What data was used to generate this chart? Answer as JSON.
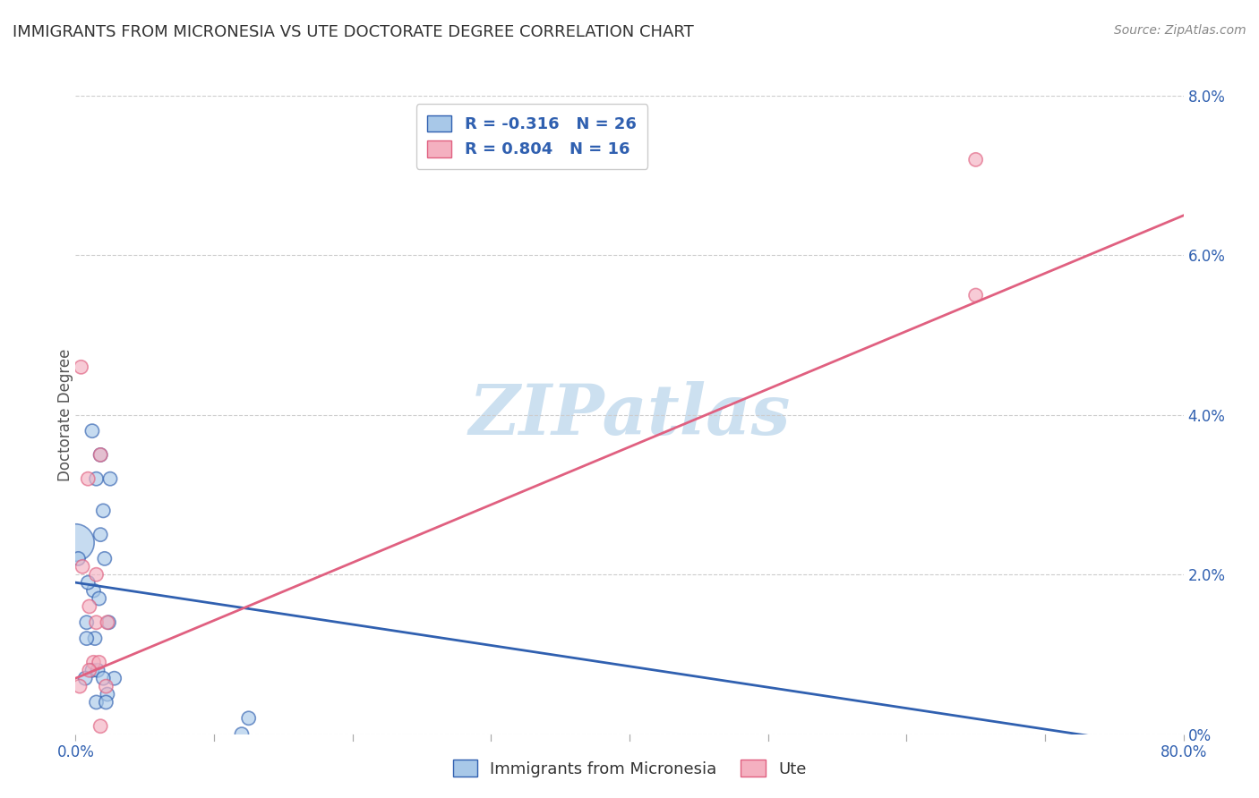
{
  "title": "IMMIGRANTS FROM MICRONESIA VS UTE DOCTORATE DEGREE CORRELATION CHART",
  "source": "Source: ZipAtlas.com",
  "ylabel_label": "Doctorate Degree",
  "legend_blue_r": "R = -0.316",
  "legend_blue_n": "N = 26",
  "legend_pink_r": "R = 0.804",
  "legend_pink_n": "N = 16",
  "legend_label_blue": "Immigrants from Micronesia",
  "legend_label_pink": "Ute",
  "blue_scatter_x": [
    1.5,
    1.8,
    1.2,
    2.0,
    2.5,
    1.8,
    1.3,
    0.8,
    0.0,
    0.9,
    1.7,
    2.1,
    2.4,
    2.8,
    1.4,
    0.2,
    0.8,
    1.2,
    1.6,
    0.7,
    2.0,
    2.3,
    1.5,
    12.0,
    12.5,
    2.2
  ],
  "blue_scatter_y": [
    3.2,
    3.5,
    3.8,
    2.8,
    3.2,
    2.5,
    1.8,
    1.4,
    2.4,
    1.9,
    1.7,
    2.2,
    1.4,
    0.7,
    1.2,
    2.2,
    1.2,
    0.8,
    0.8,
    0.7,
    0.7,
    0.5,
    0.4,
    0.0,
    0.2,
    0.4
  ],
  "blue_scatter_s": [
    120,
    120,
    120,
    120,
    120,
    120,
    120,
    120,
    900,
    120,
    120,
    120,
    120,
    120,
    120,
    120,
    120,
    120,
    120,
    120,
    120,
    120,
    120,
    120,
    120,
    120
  ],
  "pink_scatter_x": [
    0.4,
    0.9,
    1.8,
    0.5,
    1.5,
    1.5,
    2.3,
    2.2,
    0.3,
    1.3,
    1.7,
    65.0,
    65.0,
    1.0,
    1.0,
    1.8
  ],
  "pink_scatter_y": [
    4.6,
    3.2,
    3.5,
    2.1,
    1.4,
    2.0,
    1.4,
    0.6,
    0.6,
    0.9,
    0.9,
    7.2,
    5.5,
    1.6,
    0.8,
    0.1
  ],
  "pink_scatter_s": [
    120,
    120,
    120,
    120,
    120,
    120,
    120,
    120,
    120,
    120,
    120,
    120,
    120,
    120,
    120,
    120
  ],
  "blue_line_x": [
    0.0,
    80.0
  ],
  "blue_line_y": [
    1.9,
    -0.2
  ],
  "pink_line_x": [
    0.0,
    80.0
  ],
  "pink_line_y": [
    0.7,
    6.5
  ],
  "blue_color": "#a8c8e8",
  "pink_color": "#f4b0c0",
  "blue_line_color": "#3060b0",
  "pink_line_color": "#e06080",
  "watermark": "ZIPatlas",
  "watermark_color": "#cce0f0",
  "background_color": "#ffffff",
  "xlim": [
    0.0,
    80.0
  ],
  "ylim": [
    0.0,
    8.0
  ],
  "x_tick_positions": [
    0.0,
    10.0,
    20.0,
    30.0,
    40.0,
    50.0,
    60.0,
    70.0,
    80.0
  ],
  "x_tick_labels": [
    "0.0%",
    "",
    "",
    "",
    "",
    "",
    "",
    "",
    "80.0%"
  ],
  "y_tick_positions": [
    0.0,
    2.0,
    4.0,
    6.0,
    8.0
  ],
  "y_tick_labels_right": [
    "0%",
    "2.0%",
    "4.0%",
    "6.0%",
    "8.0%"
  ],
  "title_fontsize": 13,
  "tick_fontsize": 12,
  "legend_fontsize": 13
}
